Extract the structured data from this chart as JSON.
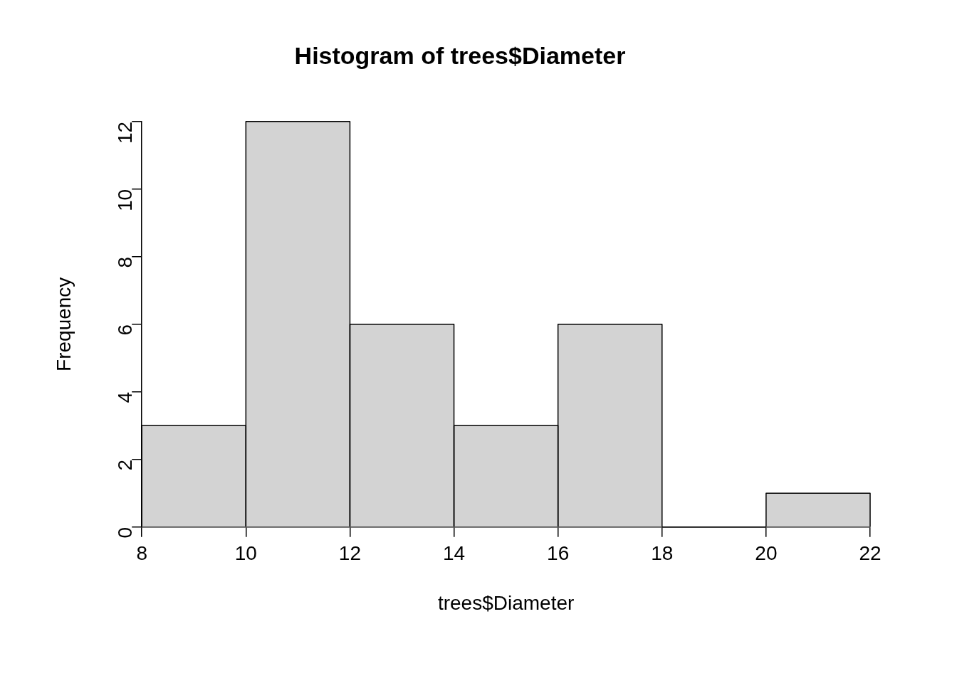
{
  "chart_data": {
    "type": "histogram",
    "title": "Histogram of trees$Diameter",
    "xlabel": "trees$Diameter",
    "ylabel": "Frequency",
    "bins": [
      8,
      10,
      12,
      14,
      16,
      18,
      20,
      22
    ],
    "values": [
      3,
      12,
      6,
      3,
      6,
      0,
      1
    ],
    "color": "#d3d3d3",
    "xlim": [
      8,
      22
    ],
    "xticks": [
      8,
      10,
      12,
      14,
      16,
      18,
      20,
      22
    ],
    "ylim": [
      0,
      12
    ],
    "yticks": [
      0,
      2,
      4,
      6,
      8,
      10,
      12
    ],
    "grid": false,
    "legend": false
  }
}
